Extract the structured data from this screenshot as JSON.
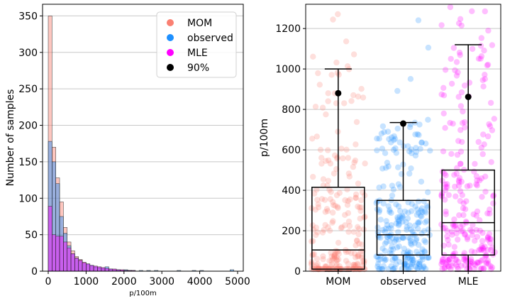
{
  "chart_data": [
    {
      "type": "bar",
      "subtype": "histogram",
      "xlabel": "p/100m",
      "ylabel": "Number of samples",
      "xlim": [
        -150,
        5150
      ],
      "ylim": [
        0,
        366
      ],
      "xticks": [
        0,
        1000,
        2000,
        3000,
        4000,
        5000
      ],
      "yticks": [
        0,
        50,
        100,
        150,
        200,
        250,
        300,
        350
      ],
      "grid": "y",
      "bin_width": 100,
      "legend_position": "top-right",
      "legend": [
        {
          "label": "MOM",
          "color": "#fa8072"
        },
        {
          "label": "observed",
          "color": "#1e90ff"
        },
        {
          "label": "MLE",
          "color": "#ff00ff"
        },
        {
          "label": "90%",
          "color": "#000000"
        }
      ],
      "series": [
        {
          "name": "MOM",
          "color": "#fa8072",
          "bin_starts": [
            0,
            100,
            200,
            300,
            400,
            500,
            600,
            700,
            800,
            900,
            1000,
            1100,
            1200,
            1300,
            1400,
            1500,
            1600,
            1700,
            1800,
            1900,
            2000,
            2100
          ],
          "values": [
            350,
            170,
            128,
            95,
            60,
            40,
            28,
            20,
            16,
            12,
            9,
            7,
            5,
            4,
            3,
            3,
            2,
            2,
            1,
            1,
            1,
            1
          ]
        },
        {
          "name": "observed",
          "color": "#1e90ff",
          "bin_starts": [
            0,
            100,
            200,
            300,
            400,
            500,
            600,
            700,
            800,
            900,
            1000,
            1100,
            1200,
            1300,
            1400,
            1500,
            1600,
            1700,
            1800,
            1900,
            2000,
            2100,
            2200,
            2400,
            2600,
            2800,
            3400,
            3800,
            4000,
            4800
          ],
          "values": [
            178,
            150,
            120,
            75,
            52,
            35,
            24,
            18,
            14,
            11,
            10,
            8,
            6,
            5,
            4,
            6,
            3,
            2,
            2,
            1,
            2,
            1,
            1,
            1,
            1,
            1,
            1,
            1,
            1,
            2
          ]
        },
        {
          "name": "MLE",
          "color": "#ff00ff",
          "bin_starts": [
            0,
            100,
            200,
            300,
            400,
            500,
            600,
            700,
            800,
            900,
            1000,
            1100,
            1200,
            1300,
            1400,
            1500,
            1600,
            1700,
            1800,
            1900,
            2000,
            2100,
            2200
          ],
          "values": [
            89,
            50,
            48,
            48,
            40,
            32,
            24,
            18,
            15,
            12,
            10,
            8,
            7,
            6,
            5,
            4,
            3,
            3,
            2,
            2,
            1,
            1,
            1
          ]
        }
      ]
    },
    {
      "type": "box",
      "ylabel": "p/100m",
      "categories": [
        "MOM",
        "observed",
        "MLE"
      ],
      "ylim": [
        0,
        1320
      ],
      "yticks": [
        0,
        200,
        400,
        600,
        800,
        1000,
        1200
      ],
      "grid": "y",
      "boxes": [
        {
          "name": "MOM",
          "color": "#fa8072",
          "whisker_low": 0,
          "q1": 10,
          "median": 105,
          "q3": 415,
          "whisker_high": 1000,
          "p90": 880
        },
        {
          "name": "observed",
          "color": "#1e90ff",
          "whisker_low": 0,
          "q1": 80,
          "median": 180,
          "q3": 350,
          "whisker_high": 735,
          "p90": 730
        },
        {
          "name": "MLE",
          "color": "#ff00ff",
          "whisker_low": 0,
          "q1": 80,
          "median": 240,
          "q3": 500,
          "whisker_high": 1120,
          "p90": 862
        }
      ]
    }
  ]
}
